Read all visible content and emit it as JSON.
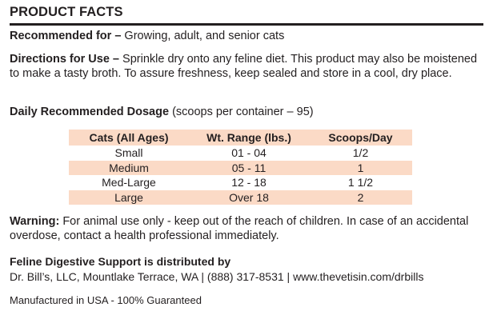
{
  "header": {
    "title": "PRODUCT FACTS"
  },
  "recommended": {
    "label": "Recommended for –",
    "text": " Growing, adult, and senior cats"
  },
  "directions": {
    "label": "Directions for Use –",
    "text": " Sprinkle dry onto any feline diet. This product may also be moistened to make a tasty broth. To assure freshness, keep sealed and store in a cool, dry place."
  },
  "dosage": {
    "label": "Daily Recommended Dosage",
    "note": " (scoops per container – 95)",
    "columns": [
      "Cats (All Ages)",
      "Wt. Range (lbs.)",
      "Scoops/Day"
    ],
    "rows": [
      [
        "Small",
        "01 - 04",
        "1/2"
      ],
      [
        "Medium",
        "05 - 11",
        "1"
      ],
      [
        "Med-Large",
        "12 - 18",
        "1 1/2"
      ],
      [
        "Large",
        "Over 18",
        "2"
      ]
    ],
    "shade_color": "#fbdac6"
  },
  "warning": {
    "label": "Warning:",
    "text": " For animal use only - keep out of the reach of children. In case of an accidental overdose, contact a health professional immediately."
  },
  "distributor": {
    "heading": "Feline Digestive Support is distributed by",
    "line": "Dr. Bill’s, LLC, Mountlake Terrace, WA | (888) 317-8531 | www.thevetisin.com/drbills"
  },
  "footer": {
    "made_in": "Manufactured in USA - 100% Guaranteed"
  }
}
